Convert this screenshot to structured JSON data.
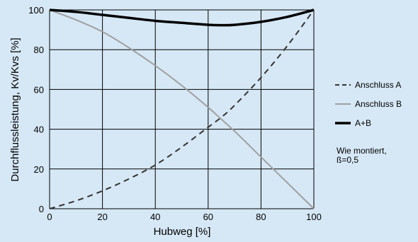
{
  "chart_data": {
    "type": "line",
    "title": "",
    "xlabel": "Hubweg [%]",
    "ylabel": "Durchflussleistung, Kv/Kvs [%]",
    "xlim": [
      0,
      100
    ],
    "ylim": [
      0,
      100
    ],
    "x_ticks": [
      "0",
      "20",
      "40",
      "60",
      "80",
      "100"
    ],
    "y_ticks": [
      "0",
      "20",
      "40",
      "60",
      "80",
      "100"
    ],
    "grid": true,
    "legend_position": "right",
    "x": [
      0,
      10,
      20,
      30,
      40,
      50,
      60,
      65,
      70,
      80,
      90,
      100
    ],
    "series": [
      {
        "name": "Anschluss A",
        "style": "dashed",
        "color": "#333333",
        "values": [
          0,
          4,
          9,
          15,
          22,
          31,
          41,
          46,
          52,
          66,
          82,
          100
        ]
      },
      {
        "name": "Anschluss B",
        "style": "solid",
        "color": "#a0a0a0",
        "values": [
          100,
          95,
          89,
          81,
          72,
          62,
          51,
          45,
          39,
          26,
          13,
          0
        ]
      },
      {
        "name": "A+B",
        "style": "bold",
        "color": "#000000",
        "values": [
          100,
          99,
          97.5,
          96,
          94.5,
          93.5,
          92.5,
          92.3,
          92.5,
          94,
          96.5,
          100
        ]
      }
    ]
  },
  "note": {
    "line1": "Wie montiert,",
    "line2": "ß=0,5"
  }
}
